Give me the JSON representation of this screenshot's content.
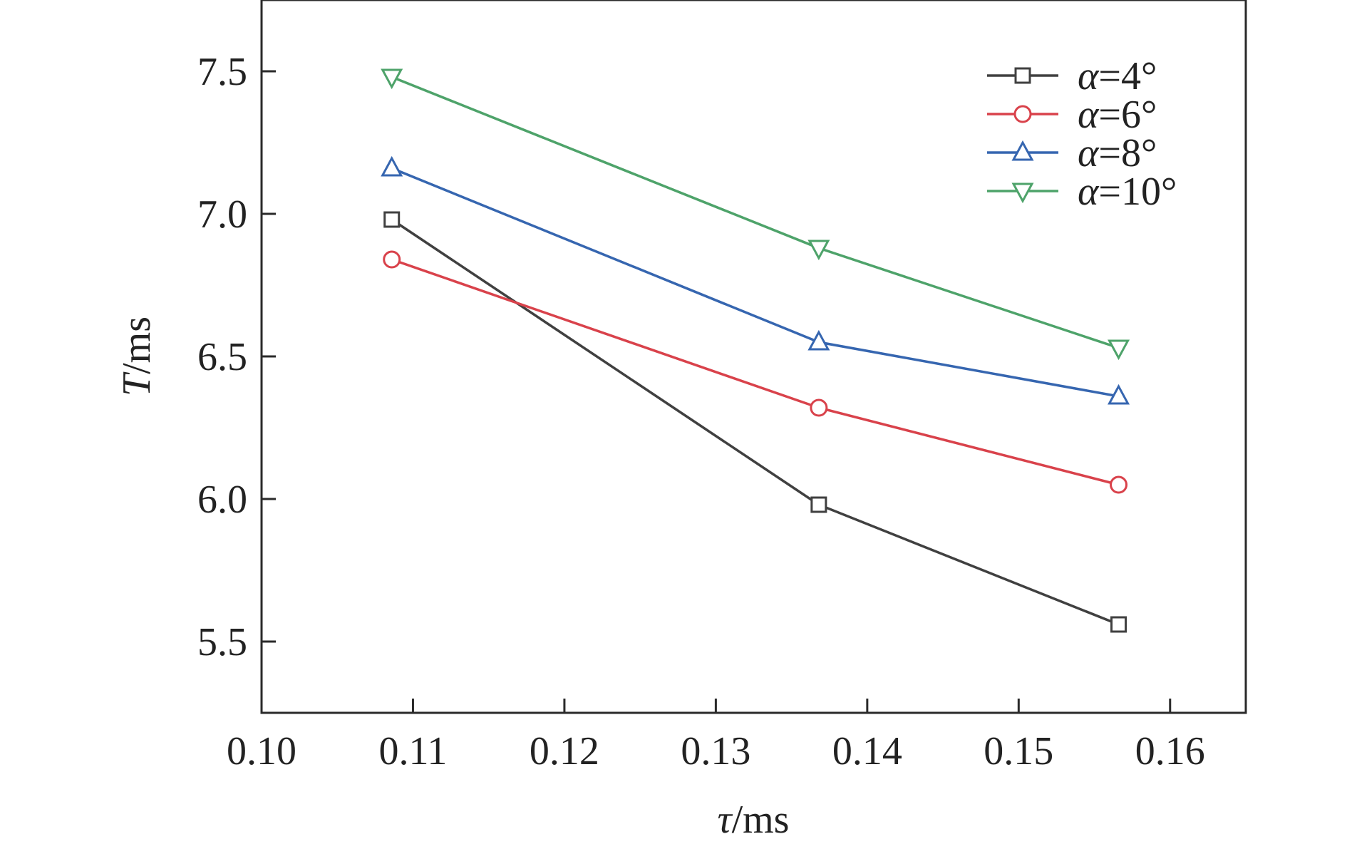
{
  "chart_data": {
    "type": "line",
    "title": "",
    "xlabel": {
      "symbol": "τ",
      "unit": "/ms"
    },
    "ylabel": {
      "symbol": "T",
      "unit": "/ms"
    },
    "xlim": [
      0.1,
      0.165
    ],
    "ylim": [
      5.25,
      7.75
    ],
    "x_ticks": [
      0.1,
      0.11,
      0.12,
      0.13,
      0.14,
      0.15,
      0.16
    ],
    "x_tick_labels": [
      "0.10",
      "0.11",
      "0.12",
      "0.13",
      "0.14",
      "0.15",
      "0.16"
    ],
    "y_ticks": [
      5.5,
      6.0,
      6.5,
      7.0,
      7.5
    ],
    "y_tick_labels": [
      "5.5",
      "6.0",
      "6.5",
      "7.0",
      "7.5"
    ],
    "grid": false,
    "legend_position": "top-right",
    "x": [
      0.1086,
      0.1368,
      0.1566
    ],
    "series": [
      {
        "name": {
          "symbol": "α",
          "value": "=4°"
        },
        "marker": "square",
        "color": "#404040",
        "values": [
          6.98,
          5.98,
          5.56
        ]
      },
      {
        "name": {
          "symbol": "α",
          "value": "=6°"
        },
        "marker": "circle",
        "color": "#d9424b",
        "values": [
          6.84,
          6.32,
          6.05
        ]
      },
      {
        "name": {
          "symbol": "α",
          "value": "=8°"
        },
        "marker": "triangle-up",
        "color": "#3666b0",
        "values": [
          7.16,
          6.55,
          6.36
        ]
      },
      {
        "name": {
          "symbol": "α",
          "value": "=10°"
        },
        "marker": "triangle-down",
        "color": "#4ea36a",
        "values": [
          7.48,
          6.88,
          6.53
        ]
      }
    ]
  }
}
